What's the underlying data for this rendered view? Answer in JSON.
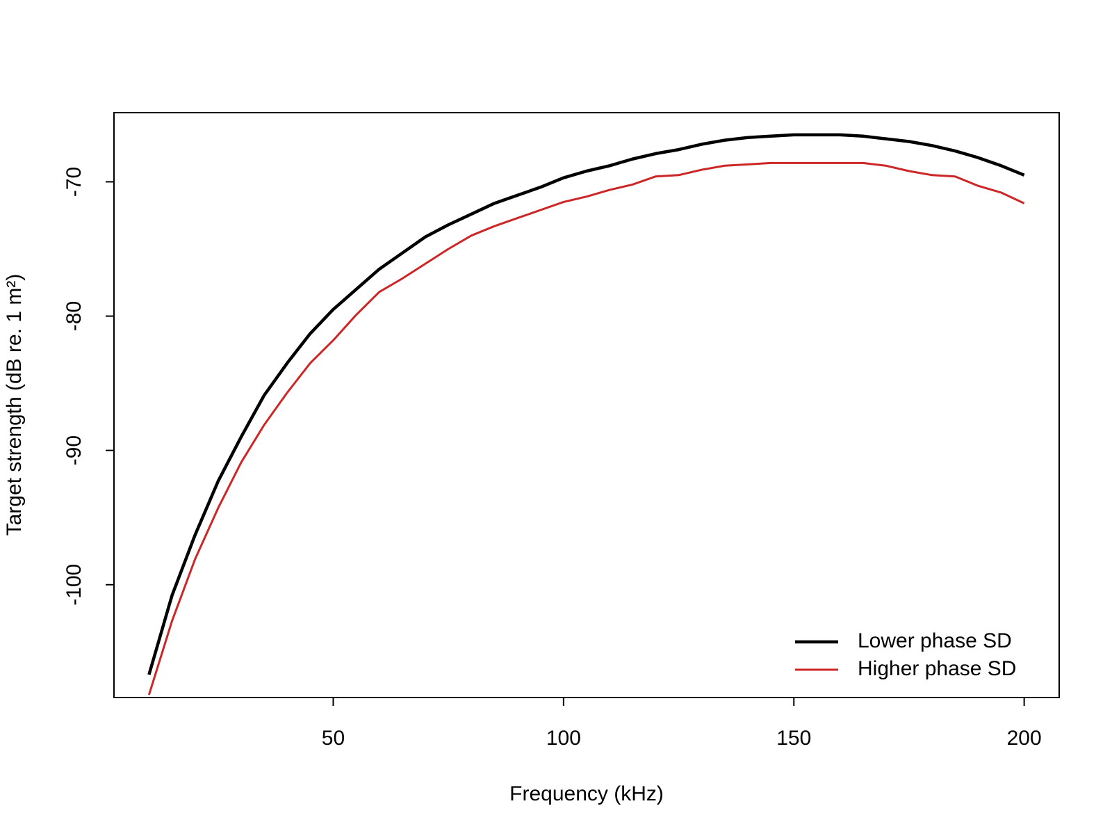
{
  "chart_data": {
    "type": "line",
    "xlabel": "Frequency (kHz)",
    "ylabel": "Target strength (dB re. 1 m²)",
    "x": [
      10,
      15,
      20,
      25,
      30,
      35,
      40,
      45,
      50,
      55,
      60,
      65,
      70,
      75,
      80,
      85,
      90,
      95,
      100,
      105,
      110,
      115,
      120,
      125,
      130,
      135,
      140,
      145,
      150,
      155,
      160,
      165,
      170,
      175,
      180,
      185,
      190,
      195,
      200
    ],
    "series": [
      {
        "name": "Lower phase SD",
        "color": "#000000",
        "values": [
          -106.7,
          -100.8,
          -96.3,
          -92.3,
          -89.0,
          -85.9,
          -83.5,
          -81.3,
          -79.5,
          -78.0,
          -76.5,
          -75.3,
          -74.1,
          -73.2,
          -72.4,
          -71.6,
          -71.0,
          -70.4,
          -69.7,
          -69.2,
          -68.8,
          -68.3,
          -67.9,
          -67.6,
          -67.2,
          -66.9,
          -66.7,
          -66.6,
          -66.5,
          -66.5,
          -66.5,
          -66.6,
          -66.8,
          -67.0,
          -67.3,
          -67.7,
          -68.2,
          -68.8,
          -69.5
        ]
      },
      {
        "name": "Higher phase SD",
        "color": "#cd2626",
        "values": [
          -108.2,
          -102.7,
          -98.1,
          -94.3,
          -90.9,
          -88.1,
          -85.7,
          -83.5,
          -81.8,
          -79.9,
          -78.2,
          -77.2,
          -76.1,
          -75.0,
          -74.0,
          -73.3,
          -72.7,
          -72.1,
          -71.5,
          -71.1,
          -70.6,
          -70.2,
          -69.6,
          -69.5,
          -69.1,
          -68.8,
          -68.7,
          -68.6,
          -68.6,
          -68.6,
          -68.6,
          -68.6,
          -68.8,
          -69.2,
          -69.5,
          -69.6,
          -70.3,
          -70.8,
          -71.6
        ]
      }
    ],
    "xlim": [
      2.4,
      207.6
    ],
    "xticks": [
      50,
      100,
      150,
      200
    ],
    "ylim": [
      -108.4,
      -64.85
    ],
    "yticks": [
      -100,
      -90,
      -80,
      -70
    ],
    "legend": "bottom-right"
  }
}
